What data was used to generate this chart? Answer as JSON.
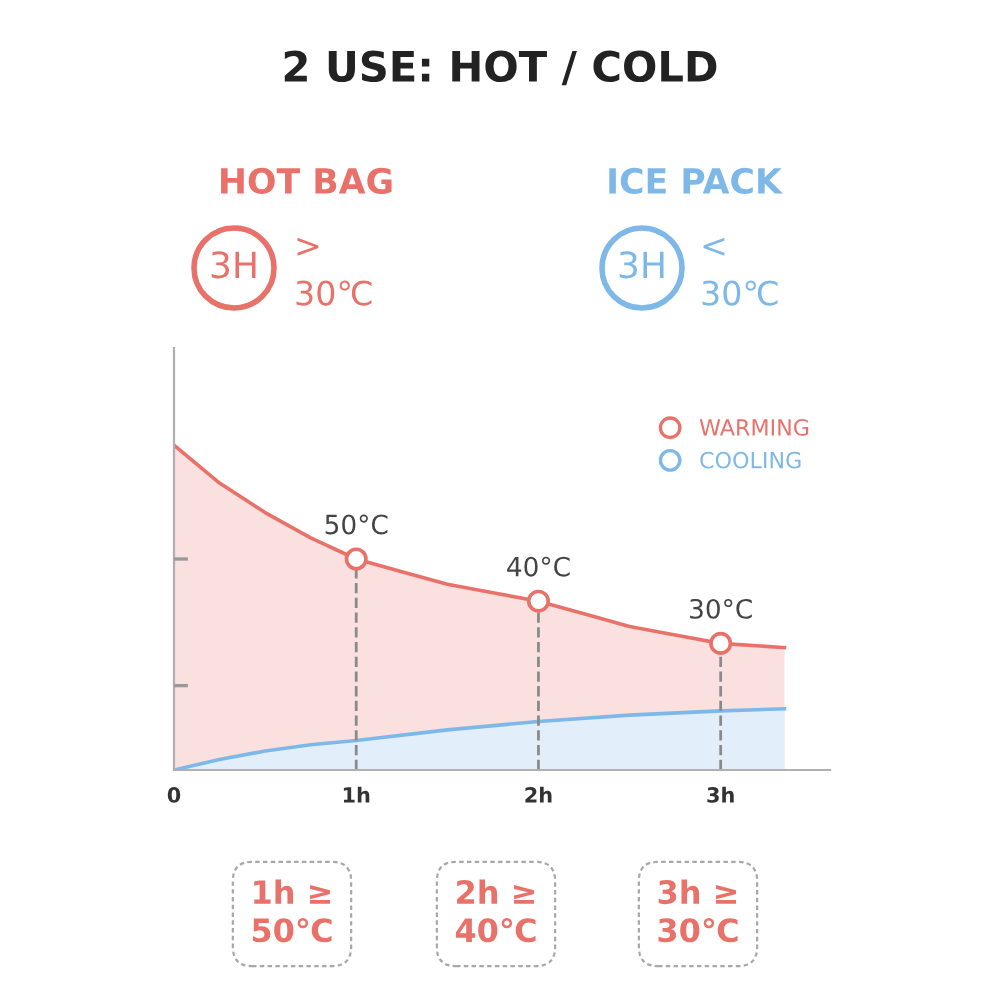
{
  "chart_data": {
    "type": "area",
    "title": "2 USE: HOT / COLD",
    "annotations": [
      "HOT BAG",
      "3H",
      ">",
      "30℃",
      "ICE PACK",
      "3H",
      "<",
      "30℃",
      "1h ≥\n50℃",
      "2h ≥\n40℃",
      "3h ≥\n30℃"
    ],
    "xlim": [
      0,
      3.6
    ],
    "xticks": [
      {
        "value": 0,
        "label": "0"
      },
      {
        "value": 1,
        "label": "1h"
      },
      {
        "value": 2,
        "label": "2h"
      },
      {
        "value": 3,
        "label": "3h"
      }
    ],
    "ylim": [
      0,
      100
    ],
    "yticks": [
      {
        "value": 20,
        "label": null
      },
      {
        "value": 50,
        "label": null
      }
    ],
    "tick_labels": "x",
    "legend": "top right",
    "series": [
      {
        "name": "WARMING",
        "color": "#e8726a",
        "x": [
          0,
          0.25,
          0.5,
          0.75,
          1,
          1.25,
          1.5,
          1.75,
          2,
          2.25,
          2.5,
          2.75,
          3,
          3.35
        ],
        "values": [
          77,
          68,
          61,
          55,
          50,
          47,
          44,
          42,
          40,
          37,
          34,
          32,
          30,
          29
        ]
      },
      {
        "name": "COOLING",
        "color": "#7db8e8",
        "x": [
          0,
          0.25,
          0.5,
          0.75,
          1,
          1.5,
          2,
          2.5,
          3,
          3.35
        ],
        "values": [
          0,
          2.5,
          4.5,
          6,
          7,
          9.5,
          11.5,
          13,
          14,
          14.5
        ]
      },
      {
        "type": "lollipop",
        "color": "#e8726a",
        "marker": "circle",
        "x": [
          1,
          2,
          3
        ],
        "values": [
          50,
          40,
          30
        ],
        "value_labels": [
          "50°C",
          "40°C",
          "30°C"
        ],
        "line_style": "dashed"
      }
    ]
  }
}
